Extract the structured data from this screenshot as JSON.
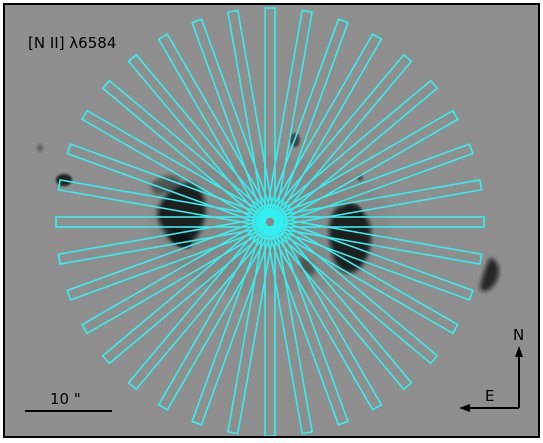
{
  "image": {
    "filter_label": "[N II] λ6584",
    "scale_bar_label": "10 \"",
    "compass": {
      "north_label": "N",
      "east_label": "E"
    },
    "colors": {
      "slit": "#33f0f0",
      "background": "#8f8f8f",
      "frame": "#000000",
      "emission": "#0a0a0a"
    },
    "slits": {
      "count": 18,
      "position_angle_step_deg": 10
    }
  }
}
